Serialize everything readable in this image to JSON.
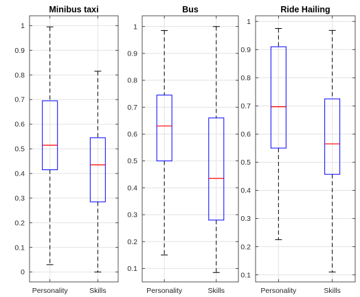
{
  "chart_data": [
    {
      "type": "box",
      "title": "Minibus taxi",
      "categories": [
        "Personality",
        "Skills"
      ],
      "ylim": [
        -0.04,
        1.04
      ],
      "yticks": [
        0,
        0.1,
        0.2,
        0.3,
        0.4,
        0.5,
        0.6,
        0.7,
        0.8,
        0.9,
        1
      ],
      "ytick_labels": [
        "0",
        "0.1",
        "0.2",
        "0.3",
        "0.4",
        "0.5",
        "0.6",
        "0.7",
        "0.8",
        "0.9",
        "1"
      ],
      "grid": true,
      "boxes": [
        {
          "category": "Personality",
          "min": 0.03,
          "q1": 0.415,
          "median": 0.515,
          "q3": 0.695,
          "max": 0.995
        },
        {
          "category": "Skills",
          "min": 0.0,
          "q1": 0.285,
          "median": 0.435,
          "q3": 0.545,
          "max": 0.815
        }
      ]
    },
    {
      "type": "box",
      "title": "Bus",
      "categories": [
        "Personality",
        "Skills"
      ],
      "ylim": [
        0.05,
        1.04
      ],
      "yticks": [
        0.1,
        0.2,
        0.3,
        0.4,
        0.5,
        0.6,
        0.7,
        0.8,
        0.9,
        1
      ],
      "ytick_labels": [
        "0.1",
        "0.2",
        "0.3",
        "0.4",
        "0.5",
        "0.6",
        "0.7",
        "0.8",
        "0.9",
        "1"
      ],
      "grid": true,
      "boxes": [
        {
          "category": "Personality",
          "min": 0.15,
          "q1": 0.5,
          "median": 0.63,
          "q3": 0.745,
          "max": 0.985
        },
        {
          "category": "Skills",
          "min": 0.085,
          "q1": 0.28,
          "median": 0.435,
          "q3": 0.66,
          "max": 1.0
        }
      ]
    },
    {
      "type": "box",
      "title": "Ride Hailing",
      "categories": [
        "Personality",
        "Skills"
      ],
      "ylim": [
        0.075,
        1.02
      ],
      "yticks": [
        0.1,
        0.2,
        0.3,
        0.4,
        0.5,
        0.6,
        0.7,
        0.8,
        0.9,
        1
      ],
      "ytick_labels": [
        "0.1",
        "0.2",
        "0.3",
        "0.4",
        "0.5",
        "0.6",
        "0.7",
        "0.8",
        "0.9",
        "1"
      ],
      "grid": true,
      "boxes": [
        {
          "category": "Personality",
          "min": 0.225,
          "q1": 0.55,
          "median": 0.697,
          "q3": 0.91,
          "max": 0.975
        },
        {
          "category": "Skills",
          "min": 0.11,
          "q1": 0.457,
          "median": 0.565,
          "q3": 0.725,
          "max": 0.968
        }
      ]
    }
  ]
}
